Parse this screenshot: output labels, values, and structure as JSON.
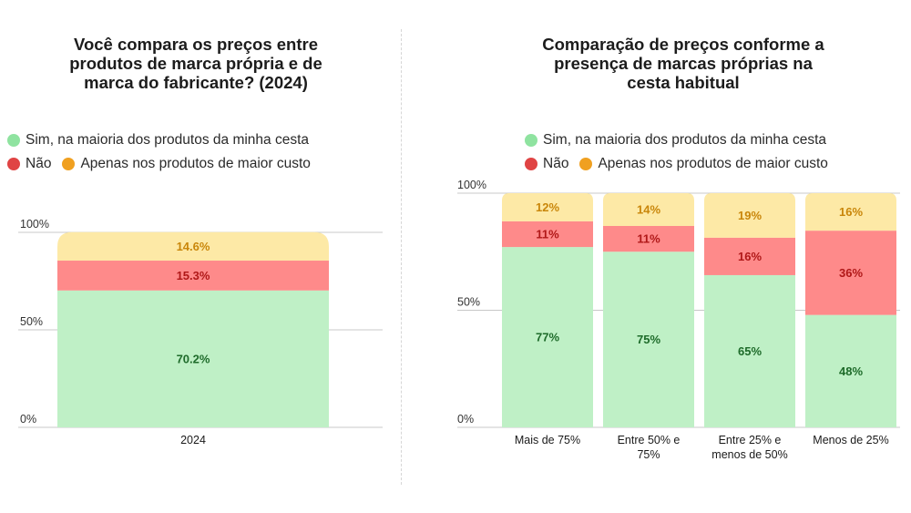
{
  "colors": {
    "sim": "#bff0c6",
    "nao": "#fe8a8a",
    "apenas": "#fde9a6",
    "sim_dot": "#8fe3a0",
    "nao_dot": "#e04444",
    "apenas_dot": "#f0a020",
    "sim_text": "#1e6b2a",
    "nao_text": "#b01818",
    "apenas_text": "#c9860a",
    "grid": "#c8c8c8"
  },
  "legend": {
    "sim": "Sim, na maioria dos produtos da minha cesta",
    "nao": "Não",
    "apenas": "Apenas nos produtos de maior custo"
  },
  "chart_data": [
    {
      "type": "bar",
      "stacked": true,
      "title": "Você compara os preços entre produtos de marca própria e de marca do fabricante? (2024)",
      "title_lines": [
        "Você compara os preços entre",
        "produtos de marca própria e de",
        "marca do fabricante? (2024)"
      ],
      "categories": [
        "2024"
      ],
      "category_lines": [
        [
          "2024"
        ]
      ],
      "series": [
        {
          "key": "sim",
          "name": "Sim, na maioria dos produtos da minha cesta",
          "values": [
            70.2
          ],
          "labels": [
            "70.2%"
          ]
        },
        {
          "key": "nao",
          "name": "Não",
          "values": [
            15.3
          ],
          "labels": [
            "15.3%"
          ]
        },
        {
          "key": "apenas",
          "name": "Apenas nos produtos de maior custo",
          "values": [
            14.6
          ],
          "labels": [
            "14.6%"
          ]
        }
      ],
      "ylim": [
        0,
        100
      ],
      "yticks": [
        0,
        50,
        100
      ],
      "ytick_labels": [
        "0%",
        "50%",
        "100%"
      ],
      "grid": true,
      "legend_position": "top-left"
    },
    {
      "type": "bar",
      "stacked": true,
      "title": "Comparação de preços conforme a presença de marcas próprias na cesta habitual",
      "title_lines": [
        "Comparação de preços conforme a",
        "presença de marcas próprias na",
        "cesta habitual"
      ],
      "categories": [
        "Mais de 75%",
        "Entre 50% e 75%",
        "Entre 25% e menos de 50%",
        "Menos de 25%"
      ],
      "category_lines": [
        [
          "Mais de 75%"
        ],
        [
          "Entre 50% e",
          "75%"
        ],
        [
          "Entre 25% e",
          "menos de 50%"
        ],
        [
          "Menos de 25%"
        ]
      ],
      "series": [
        {
          "key": "sim",
          "name": "Sim, na maioria dos produtos da minha cesta",
          "values": [
            77,
            75,
            65,
            48
          ],
          "labels": [
            "77%",
            "75%",
            "65%",
            "48%"
          ]
        },
        {
          "key": "nao",
          "name": "Não",
          "values": [
            11,
            11,
            16,
            36
          ],
          "labels": [
            "11%",
            "11%",
            "16%",
            "36%"
          ]
        },
        {
          "key": "apenas",
          "name": "Apenas nos produtos de maior custo",
          "values": [
            12,
            14,
            19,
            16
          ],
          "labels": [
            "12%",
            "14%",
            "19%",
            "16%"
          ]
        }
      ],
      "ylim": [
        0,
        100
      ],
      "yticks": [
        0,
        50,
        100
      ],
      "ytick_labels": [
        "0%",
        "50%",
        "100%"
      ],
      "grid": true,
      "legend_position": "top-center"
    }
  ]
}
